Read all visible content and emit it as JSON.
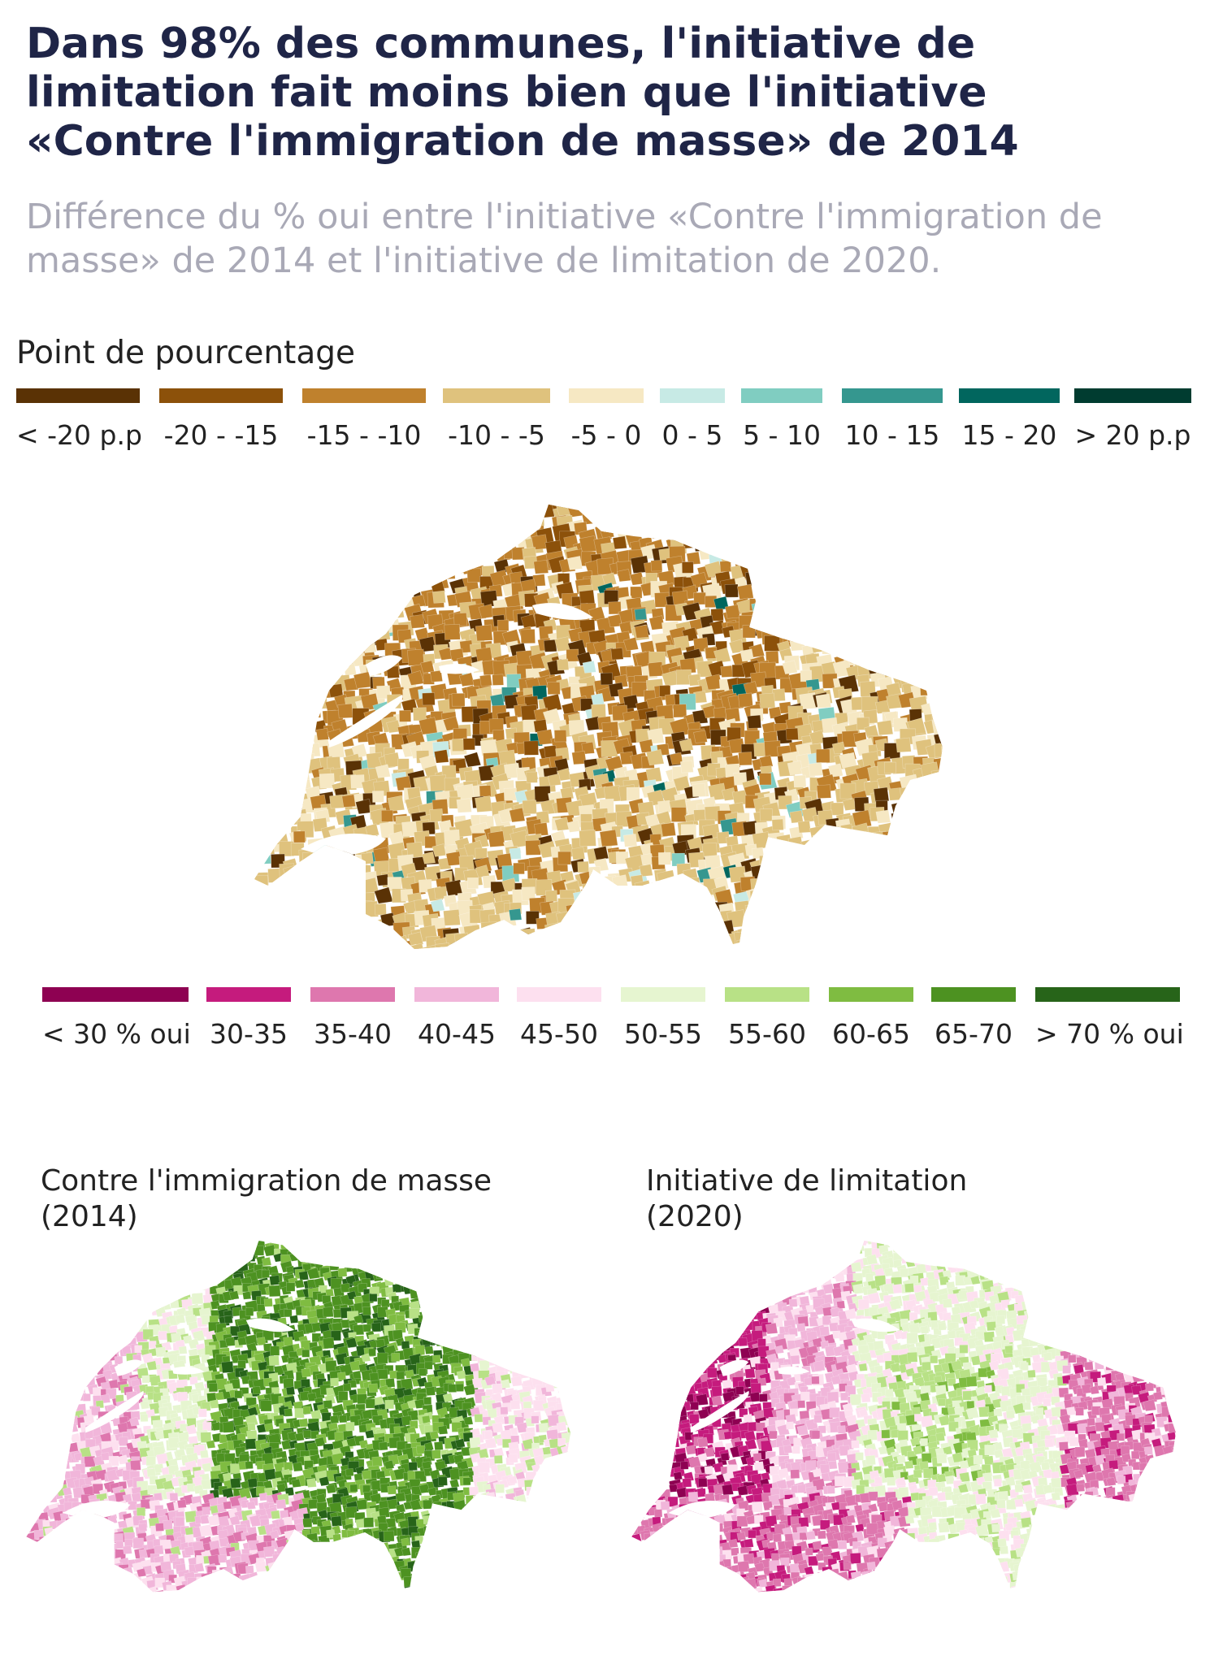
{
  "title": "Dans 98% des communes, l'initiative de limitation fait moins bien que l'initiative «Contre l'immigration de masse» de 2014",
  "subtitle": "Différence du % oui entre l'initiative «Contre l'immigration de masse» de 2014 et l'initiative de limitation de 2020.",
  "diff_legend": {
    "title": "Point de pourcentage",
    "items": [
      {
        "label": "< -20 p.p",
        "color": "#5a3205"
      },
      {
        "label": "-20 - -15",
        "color": "#8c510a"
      },
      {
        "label": "-15 - -10",
        "color": "#bf812d"
      },
      {
        "label": "-10 - -5",
        "color": "#dfc27d"
      },
      {
        "label": "-5 - 0",
        "color": "#f6e8c3"
      },
      {
        "label": "0 - 5",
        "color": "#c7eae5"
      },
      {
        "label": "5 - 10",
        "color": "#80cdc1"
      },
      {
        "label": "10 - 15",
        "color": "#35978f"
      },
      {
        "label": "15 - 20",
        "color": "#01665e"
      },
      {
        "label": "> 20 p.p",
        "color": "#003c30"
      }
    ]
  },
  "vote_legend": {
    "items": [
      {
        "label": "< 30 % oui",
        "color": "#8e0152"
      },
      {
        "label": "30-35",
        "color": "#c51b7d"
      },
      {
        "label": "35-40",
        "color": "#de77ae"
      },
      {
        "label": "40-45",
        "color": "#f1b6da"
      },
      {
        "label": "45-50",
        "color": "#fde0ef"
      },
      {
        "label": "50-55",
        "color": "#e6f5d0"
      },
      {
        "label": "55-60",
        "color": "#b8e186"
      },
      {
        "label": "60-65",
        "color": "#7fbc41"
      },
      {
        "label": "65-70",
        "color": "#4d9221"
      },
      {
        "label": "> 70 % oui",
        "color": "#276419"
      }
    ]
  },
  "maps": {
    "left_label": "Contre l'immigration de masse\n(2014)",
    "right_label": "Initiative de limitation\n(2020)"
  }
}
